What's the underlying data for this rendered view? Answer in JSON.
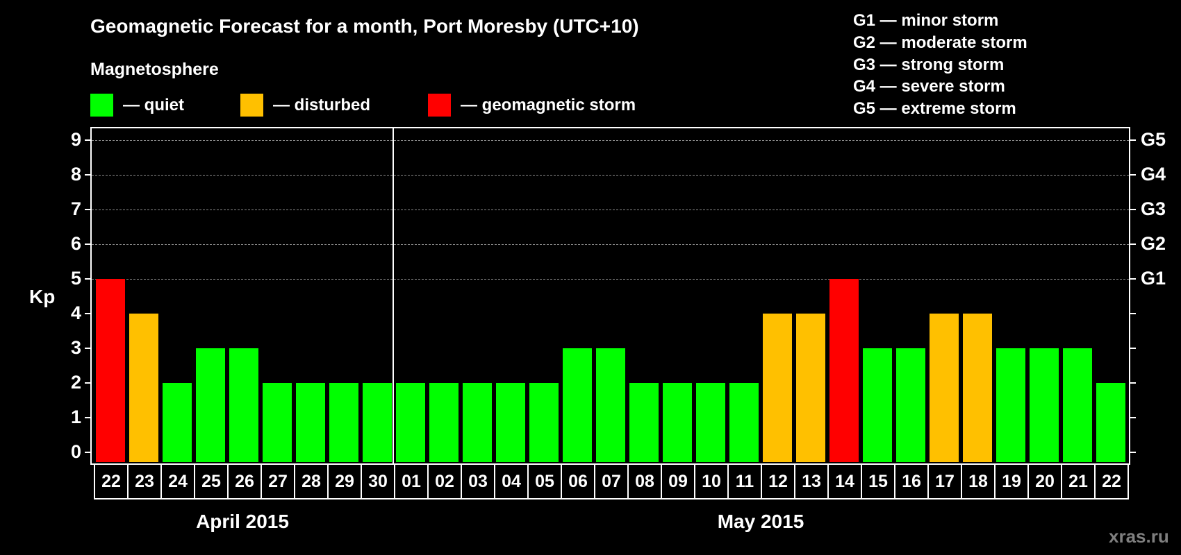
{
  "title": "Geomagnetic Forecast for a month, Port Moresby (UTC+10)",
  "subtitle": "Magnetosphere",
  "legend": [
    {
      "label": "— quiet",
      "color": "#00ff00"
    },
    {
      "label": "— disturbed",
      "color": "#ffc000"
    },
    {
      "label": "— geomagnetic storm",
      "color": "#ff0000"
    }
  ],
  "storm_scale": [
    "G1 — minor storm",
    "G2 — moderate storm",
    "G3 — strong storm",
    "G4 — severe storm",
    "G5 — extreme storm"
  ],
  "y_axis_label": "Kp",
  "y_ticks": [
    "0",
    "1",
    "2",
    "3",
    "4",
    "5",
    "6",
    "7",
    "8",
    "9"
  ],
  "g_ticks": [
    {
      "kp": 5,
      "label": "G1"
    },
    {
      "kp": 6,
      "label": "G2"
    },
    {
      "kp": 7,
      "label": "G3"
    },
    {
      "kp": 8,
      "label": "G4"
    },
    {
      "kp": 9,
      "label": "G5"
    }
  ],
  "months": [
    {
      "label": "April 2015"
    },
    {
      "label": "May 2015"
    }
  ],
  "watermark": "xras.ru",
  "colors": {
    "quiet": "#00ff00",
    "disturbed": "#ffc000",
    "storm": "#ff0000"
  },
  "chart_data": {
    "type": "bar",
    "title": "Geomagnetic Forecast for a month, Port Moresby (UTC+10)",
    "xlabel": "",
    "ylabel": "Kp",
    "ylim": [
      0,
      9
    ],
    "grid": true,
    "secondary_axis": {
      "5": "G1",
      "6": "G2",
      "7": "G3",
      "8": "G4",
      "9": "G5"
    },
    "categories": [
      "22",
      "23",
      "24",
      "25",
      "26",
      "27",
      "28",
      "29",
      "30",
      "01",
      "02",
      "03",
      "04",
      "05",
      "06",
      "07",
      "08",
      "09",
      "10",
      "11",
      "12",
      "13",
      "14",
      "15",
      "16",
      "17",
      "18",
      "19",
      "20",
      "21",
      "22"
    ],
    "month_groups": [
      {
        "label": "April 2015",
        "from": "22",
        "to": "30"
      },
      {
        "label": "May 2015",
        "from": "01",
        "to": "22"
      }
    ],
    "values": [
      5,
      4,
      2,
      3,
      3,
      2,
      2,
      2,
      2,
      2,
      2,
      2,
      2,
      2,
      3,
      3,
      2,
      2,
      2,
      2,
      4,
      4,
      5,
      3,
      3,
      4,
      4,
      3,
      3,
      3,
      2
    ],
    "status": [
      "storm",
      "disturbed",
      "quiet",
      "quiet",
      "quiet",
      "quiet",
      "quiet",
      "quiet",
      "quiet",
      "quiet",
      "quiet",
      "quiet",
      "quiet",
      "quiet",
      "quiet",
      "quiet",
      "quiet",
      "quiet",
      "quiet",
      "quiet",
      "disturbed",
      "disturbed",
      "storm",
      "quiet",
      "quiet",
      "disturbed",
      "disturbed",
      "quiet",
      "quiet",
      "quiet",
      "quiet"
    ],
    "legend": [
      "quiet",
      "disturbed",
      "geomagnetic storm"
    ]
  }
}
